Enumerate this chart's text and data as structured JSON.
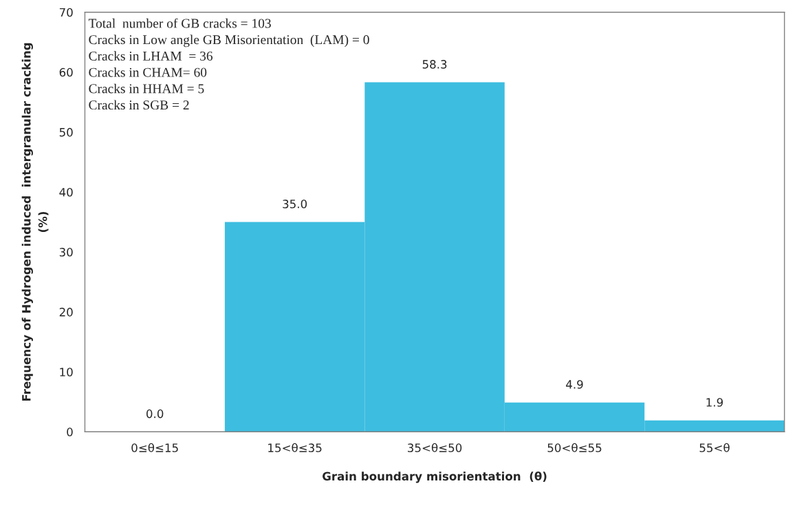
{
  "chart_data": {
    "type": "bar",
    "categories": [
      "0≤θ≤15",
      "15<θ≤35",
      "35<θ≤50",
      "50<θ≤55",
      "55<θ"
    ],
    "values": [
      0.0,
      35.0,
      58.3,
      4.9,
      1.9
    ],
    "color": "#3dbde0",
    "xlabel": "Grain boundary misorientation  (θ)",
    "ylabel": "Frequency of Hydrogen induced  intergranular cracking\n(%)",
    "ylim": [
      0,
      70
    ],
    "yticks": [
      0,
      10,
      20,
      30,
      40,
      50,
      60,
      70
    ],
    "value_labels": [
      "0.0",
      "35.0",
      "58.3",
      "4.9",
      "1.9"
    ],
    "grid": false,
    "annotations": [
      "Total  number of GB cracks = 103",
      "Cracks in Low angle GB Misorientation  (LAM) = 0",
      "Cracks in LHAM  = 36",
      "Cracks in CHAM= 60",
      "Cracks in HHAM = 5",
      "Cracks in SGB = 2"
    ]
  }
}
